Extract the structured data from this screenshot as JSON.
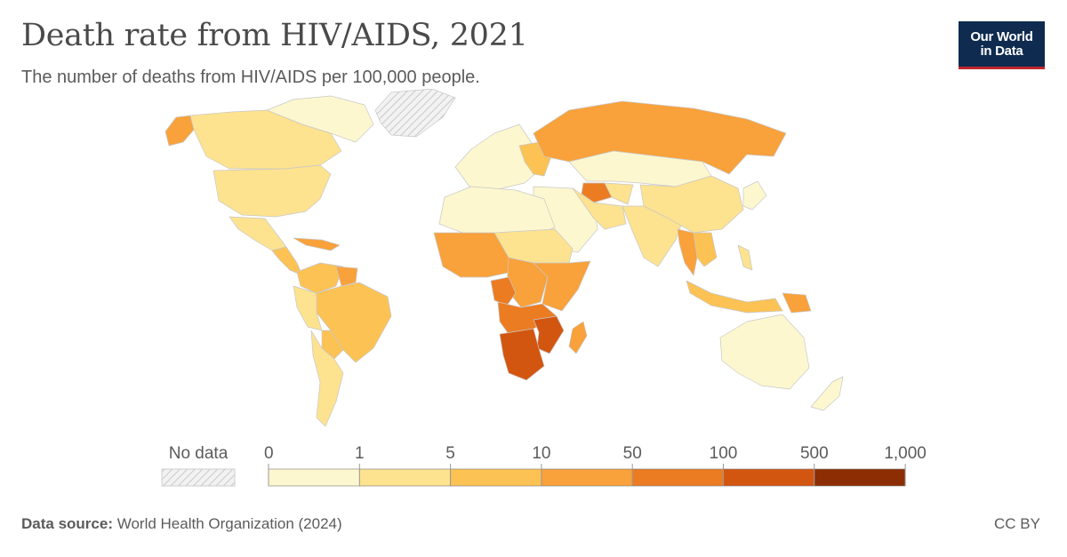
{
  "header": {
    "title": "Death rate from HIV/AIDS, 2021",
    "subtitle": "The number of deaths from HIV/AIDS per 100,000 people."
  },
  "logo": {
    "line1": "Our World",
    "line2": "in Data"
  },
  "legend": {
    "no_data_label": "No data",
    "bins": [
      {
        "from": "0",
        "to": "1",
        "color": "#fdf7cf"
      },
      {
        "from": "1",
        "to": "5",
        "color": "#fde28f"
      },
      {
        "from": "5",
        "to": "10",
        "color": "#fcc253"
      },
      {
        "from": "10",
        "to": "50",
        "color": "#f9a13a"
      },
      {
        "from": "50",
        "to": "100",
        "color": "#ec7c22"
      },
      {
        "from": "100",
        "to": "500",
        "color": "#d35610"
      },
      {
        "from": "500",
        "to": "1,000",
        "color": "#8c2d04"
      }
    ],
    "tick_labels": [
      "0",
      "1",
      "5",
      "10",
      "50",
      "100",
      "500",
      "1,000"
    ]
  },
  "footer": {
    "source_label": "Data source:",
    "source_text": "World Health Organization (2024)",
    "license": "CC BY"
  },
  "colors": {
    "no_data": "#dddddd",
    "border": "#c8c8c8"
  },
  "regions": [
    {
      "name": "alaska",
      "bin": 3
    },
    {
      "name": "canada",
      "bin": 1
    },
    {
      "name": "canada-north",
      "bin": 0
    },
    {
      "name": "greenland",
      "bin": -1
    },
    {
      "name": "usa",
      "bin": 1
    },
    {
      "name": "mexico",
      "bin": 1
    },
    {
      "name": "central-america",
      "bin": 2
    },
    {
      "name": "caribbean",
      "bin": 3
    },
    {
      "name": "colombia-venezuela",
      "bin": 2
    },
    {
      "name": "guianas",
      "bin": 3
    },
    {
      "name": "brazil",
      "bin": 2
    },
    {
      "name": "andes",
      "bin": 1
    },
    {
      "name": "bolivia-paraguay",
      "bin": 2
    },
    {
      "name": "southern-cone",
      "bin": 1
    },
    {
      "name": "europe",
      "bin": 0
    },
    {
      "name": "eastern-europe",
      "bin": 2
    },
    {
      "name": "russia",
      "bin": 3
    },
    {
      "name": "kazakhstan-mongolia",
      "bin": 0
    },
    {
      "name": "turkmenistan",
      "bin": 4
    },
    {
      "name": "central-asia",
      "bin": 1
    },
    {
      "name": "middle-east",
      "bin": 0
    },
    {
      "name": "iran",
      "bin": 1
    },
    {
      "name": "north-africa",
      "bin": 0
    },
    {
      "name": "sahel",
      "bin": 1
    },
    {
      "name": "west-africa",
      "bin": 3
    },
    {
      "name": "central-africa",
      "bin": 3
    },
    {
      "name": "east-africa",
      "bin": 3
    },
    {
      "name": "gabon-congo",
      "bin": 4
    },
    {
      "name": "angola-zambia",
      "bin": 4
    },
    {
      "name": "mozambique",
      "bin": 5
    },
    {
      "name": "southern-africa",
      "bin": 5
    },
    {
      "name": "madagascar",
      "bin": 3
    },
    {
      "name": "south-asia",
      "bin": 1
    },
    {
      "name": "china",
      "bin": 1
    },
    {
      "name": "japan-korea",
      "bin": 0
    },
    {
      "name": "myanmar-thailand",
      "bin": 3
    },
    {
      "name": "indochina",
      "bin": 2
    },
    {
      "name": "indonesia",
      "bin": 2
    },
    {
      "name": "papua",
      "bin": 3
    },
    {
      "name": "philippines",
      "bin": 1
    },
    {
      "name": "australia",
      "bin": 0
    },
    {
      "name": "new-zealand",
      "bin": 0
    }
  ]
}
